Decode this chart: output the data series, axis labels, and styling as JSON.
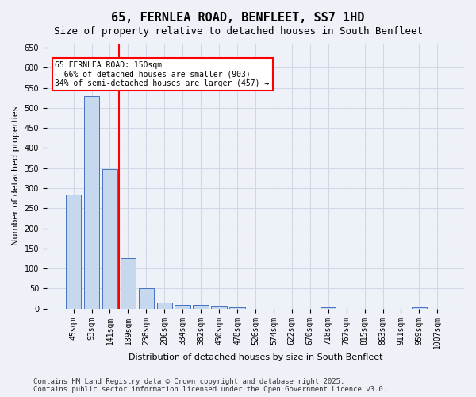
{
  "title": "65, FERNLEA ROAD, BENFLEET, SS7 1HD",
  "subtitle": "Size of property relative to detached houses in South Benfleet",
  "xlabel": "Distribution of detached houses by size in South Benfleet",
  "ylabel": "Number of detached properties",
  "categories": [
    "45sqm",
    "93sqm",
    "141sqm",
    "189sqm",
    "238sqm",
    "286sqm",
    "334sqm",
    "382sqm",
    "430sqm",
    "478sqm",
    "526sqm",
    "574sqm",
    "622sqm",
    "670sqm",
    "718sqm",
    "767sqm",
    "815sqm",
    "863sqm",
    "911sqm",
    "959sqm",
    "1007sqm"
  ],
  "values": [
    284,
    530,
    348,
    125,
    50,
    16,
    10,
    9,
    5,
    4,
    0,
    0,
    0,
    0,
    4,
    0,
    0,
    0,
    0,
    4,
    0
  ],
  "bar_color": "#c5d8ed",
  "bar_edgecolor": "#4472c4",
  "grid_color": "#d0d8e8",
  "bg_color": "#eef2f8",
  "annotation_text": "65 FERNLEA ROAD: 150sqm\n← 66% of detached houses are smaller (903)\n34% of semi-detached houses are larger (457) →",
  "redline_x": 2.5,
  "ylim": [
    0,
    660
  ],
  "yticks": [
    0,
    50,
    100,
    150,
    200,
    250,
    300,
    350,
    400,
    450,
    500,
    550,
    600,
    650
  ],
  "footer": "Contains HM Land Registry data © Crown copyright and database right 2025.\nContains public sector information licensed under the Open Government Licence v3.0.",
  "title_fontsize": 11,
  "subtitle_fontsize": 9,
  "label_fontsize": 8,
  "tick_fontsize": 7,
  "footer_fontsize": 6.5
}
